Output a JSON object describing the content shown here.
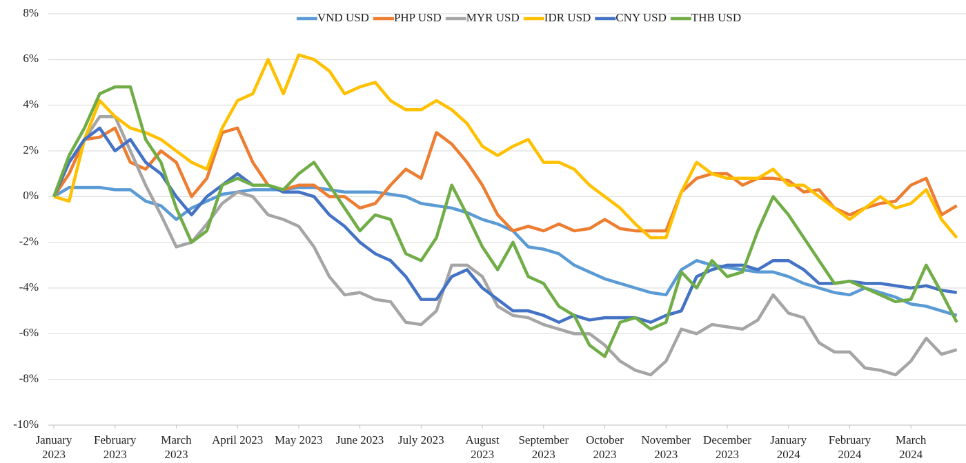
{
  "chart_data": {
    "type": "line",
    "x": [
      0,
      0.25,
      0.5,
      0.75,
      1,
      1.25,
      1.5,
      1.75,
      2,
      2.25,
      2.5,
      2.75,
      3,
      3.25,
      3.5,
      3.75,
      4,
      4.25,
      4.5,
      4.75,
      5,
      5.25,
      5.5,
      5.75,
      6,
      6.25,
      6.5,
      6.75,
      7,
      7.25,
      7.5,
      7.75,
      8,
      8.25,
      8.5,
      8.75,
      9,
      9.25,
      9.5,
      9.75,
      10,
      10.25,
      10.5,
      10.75,
      11,
      11.25,
      11.5,
      11.75,
      12,
      12.25,
      12.5,
      12.75,
      13,
      13.25,
      13.5,
      13.75,
      14,
      14.25,
      14.5,
      14.75
    ],
    "xlim": [
      0,
      14.9
    ],
    "xticks": [
      {
        "value": 0,
        "label": "January 2023"
      },
      {
        "value": 1,
        "label": "February 2023"
      },
      {
        "value": 2,
        "label": "March 2023"
      },
      {
        "value": 3,
        "label": "April 2023"
      },
      {
        "value": 4,
        "label": "May 2023"
      },
      {
        "value": 5,
        "label": "June 2023"
      },
      {
        "value": 6,
        "label": "July 2023"
      },
      {
        "value": 7,
        "label": "August 2023"
      },
      {
        "value": 8,
        "label": "September 2023"
      },
      {
        "value": 9,
        "label": "October 2023"
      },
      {
        "value": 10,
        "label": "November 2023"
      },
      {
        "value": 11,
        "label": "December 2023"
      },
      {
        "value": 12,
        "label": "January 2024"
      },
      {
        "value": 13,
        "label": "February 2024"
      },
      {
        "value": 14,
        "label": "March 2024"
      }
    ],
    "ylim": [
      -10,
      8
    ],
    "yticks": [
      {
        "value": -10,
        "label": "-10%"
      },
      {
        "value": -8,
        "label": "-8%"
      },
      {
        "value": -6,
        "label": "-6%"
      },
      {
        "value": -4,
        "label": "-4%"
      },
      {
        "value": -2,
        "label": "-2%"
      },
      {
        "value": 0,
        "label": "0%"
      },
      {
        "value": 2,
        "label": "2%"
      },
      {
        "value": 4,
        "label": "4%"
      },
      {
        "value": 6,
        "label": "6%"
      },
      {
        "value": 8,
        "label": "8%"
      }
    ],
    "grid": true,
    "legend": "top",
    "series": [
      {
        "name": "VND USD",
        "color": "#5b9bd5",
        "values": [
          0,
          0.4,
          0.4,
          0.4,
          0.3,
          0.3,
          -0.2,
          -0.4,
          -1.0,
          -0.5,
          -0.2,
          0.1,
          0.2,
          0.3,
          0.3,
          0.3,
          0.4,
          0.4,
          0.3,
          0.2,
          0.2,
          0.2,
          0.1,
          0.0,
          -0.3,
          -0.4,
          -0.5,
          -0.7,
          -1.0,
          -1.2,
          -1.5,
          -2.2,
          -2.3,
          -2.5,
          -3.0,
          -3.3,
          -3.6,
          -3.8,
          -4.0,
          -4.2,
          -4.3,
          -3.2,
          -2.8,
          -3.0,
          -3.1,
          -3.2,
          -3.3,
          -3.3,
          -3.5,
          -3.8,
          -4.0,
          -4.2,
          -4.3,
          -4.0,
          -4.2,
          -4.4,
          -4.7,
          -4.8,
          -5.0,
          -5.2
        ]
      },
      {
        "name": "PHP USD",
        "color": "#ed7d31",
        "values": [
          0,
          1.0,
          2.5,
          2.6,
          3.0,
          1.5,
          1.2,
          2.0,
          1.5,
          0.0,
          0.8,
          2.8,
          3.0,
          1.5,
          0.5,
          0.3,
          0.5,
          0.5,
          0.0,
          0.0,
          -0.5,
          -0.3,
          0.5,
          1.2,
          0.8,
          2.8,
          2.3,
          1.5,
          0.5,
          -0.8,
          -1.5,
          -1.3,
          -1.5,
          -1.2,
          -1.5,
          -1.4,
          -1.0,
          -1.4,
          -1.5,
          -1.5,
          -1.5,
          0.2,
          0.8,
          1.0,
          1.0,
          0.5,
          0.8,
          0.8,
          0.7,
          0.2,
          0.3,
          -0.5,
          -0.8,
          -0.5,
          -0.3,
          -0.2,
          0.5,
          0.8,
          -0.8,
          -0.4
        ]
      },
      {
        "name": "MYR USD",
        "color": "#a5a5a5",
        "values": [
          0,
          1.5,
          2.5,
          3.5,
          3.5,
          2.0,
          0.5,
          -0.8,
          -2.2,
          -2.0,
          -1.2,
          -0.3,
          0.2,
          0.0,
          -0.8,
          -1.0,
          -1.3,
          -2.2,
          -3.5,
          -4.3,
          -4.2,
          -4.5,
          -4.6,
          -5.5,
          -5.6,
          -5.0,
          -3.0,
          -3.0,
          -3.5,
          -4.8,
          -5.2,
          -5.3,
          -5.6,
          -5.8,
          -6.0,
          -6.0,
          -6.5,
          -7.2,
          -7.6,
          -7.8,
          -7.2,
          -5.8,
          -6.0,
          -5.6,
          -5.7,
          -5.8,
          -5.4,
          -4.3,
          -5.1,
          -5.3,
          -6.4,
          -6.8,
          -6.8,
          -7.5,
          -7.6,
          -7.8,
          -7.2,
          -6.2,
          -6.9,
          -6.7
        ]
      },
      {
        "name": "IDR USD",
        "color": "#ffc000",
        "values": [
          0,
          -0.2,
          2.5,
          4.2,
          3.5,
          3.0,
          2.8,
          2.5,
          2.0,
          1.5,
          1.2,
          3.0,
          4.2,
          4.5,
          6.0,
          4.5,
          6.2,
          6.0,
          5.5,
          4.5,
          4.8,
          5.0,
          4.2,
          3.8,
          3.8,
          4.2,
          3.8,
          3.2,
          2.2,
          1.8,
          2.2,
          2.5,
          1.5,
          1.5,
          1.2,
          0.5,
          0.0,
          -0.5,
          -1.2,
          -1.8,
          -1.8,
          0.2,
          1.5,
          1.0,
          0.8,
          0.8,
          0.8,
          1.2,
          0.5,
          0.5,
          0.0,
          -0.5,
          -1.0,
          -0.5,
          0.0,
          -0.5,
          -0.3,
          0.3,
          -1.0,
          -1.8
        ]
      },
      {
        "name": "CNY USD",
        "color": "#4472c4",
        "values": [
          0,
          1.5,
          2.5,
          3.0,
          2.0,
          2.5,
          1.5,
          1.0,
          0.0,
          -0.8,
          0.0,
          0.5,
          1.0,
          0.5,
          0.5,
          0.2,
          0.2,
          0.0,
          -0.8,
          -1.3,
          -2.0,
          -2.5,
          -2.8,
          -3.5,
          -4.5,
          -4.5,
          -3.5,
          -3.2,
          -4.0,
          -4.5,
          -5.0,
          -5.0,
          -5.2,
          -5.5,
          -5.2,
          -5.4,
          -5.3,
          -5.3,
          -5.3,
          -5.5,
          -5.2,
          -5.0,
          -3.5,
          -3.2,
          -3.0,
          -3.0,
          -3.2,
          -2.8,
          -2.8,
          -3.2,
          -3.8,
          -3.8,
          -3.7,
          -3.8,
          -3.8,
          -3.9,
          -4.0,
          -3.9,
          -4.1,
          -4.2
        ]
      },
      {
        "name": "THB USD",
        "color": "#70ad47",
        "values": [
          0,
          1.8,
          3.0,
          4.5,
          4.8,
          4.8,
          2.5,
          1.5,
          -0.5,
          -2.0,
          -1.5,
          0.5,
          0.8,
          0.5,
          0.5,
          0.3,
          1.0,
          1.5,
          0.5,
          -0.5,
          -1.5,
          -0.8,
          -1.0,
          -2.5,
          -2.8,
          -1.8,
          0.5,
          -0.8,
          -2.2,
          -3.2,
          -2.0,
          -3.5,
          -3.8,
          -4.8,
          -5.2,
          -6.5,
          -7.0,
          -5.5,
          -5.3,
          -5.8,
          -5.5,
          -3.3,
          -4.0,
          -2.8,
          -3.5,
          -3.3,
          -1.5,
          0.0,
          -0.8,
          -1.8,
          -2.8,
          -3.8,
          -3.7,
          -4.0,
          -4.3,
          -4.6,
          -4.5,
          -3.0,
          -4.2,
          -5.5
        ]
      }
    ]
  }
}
